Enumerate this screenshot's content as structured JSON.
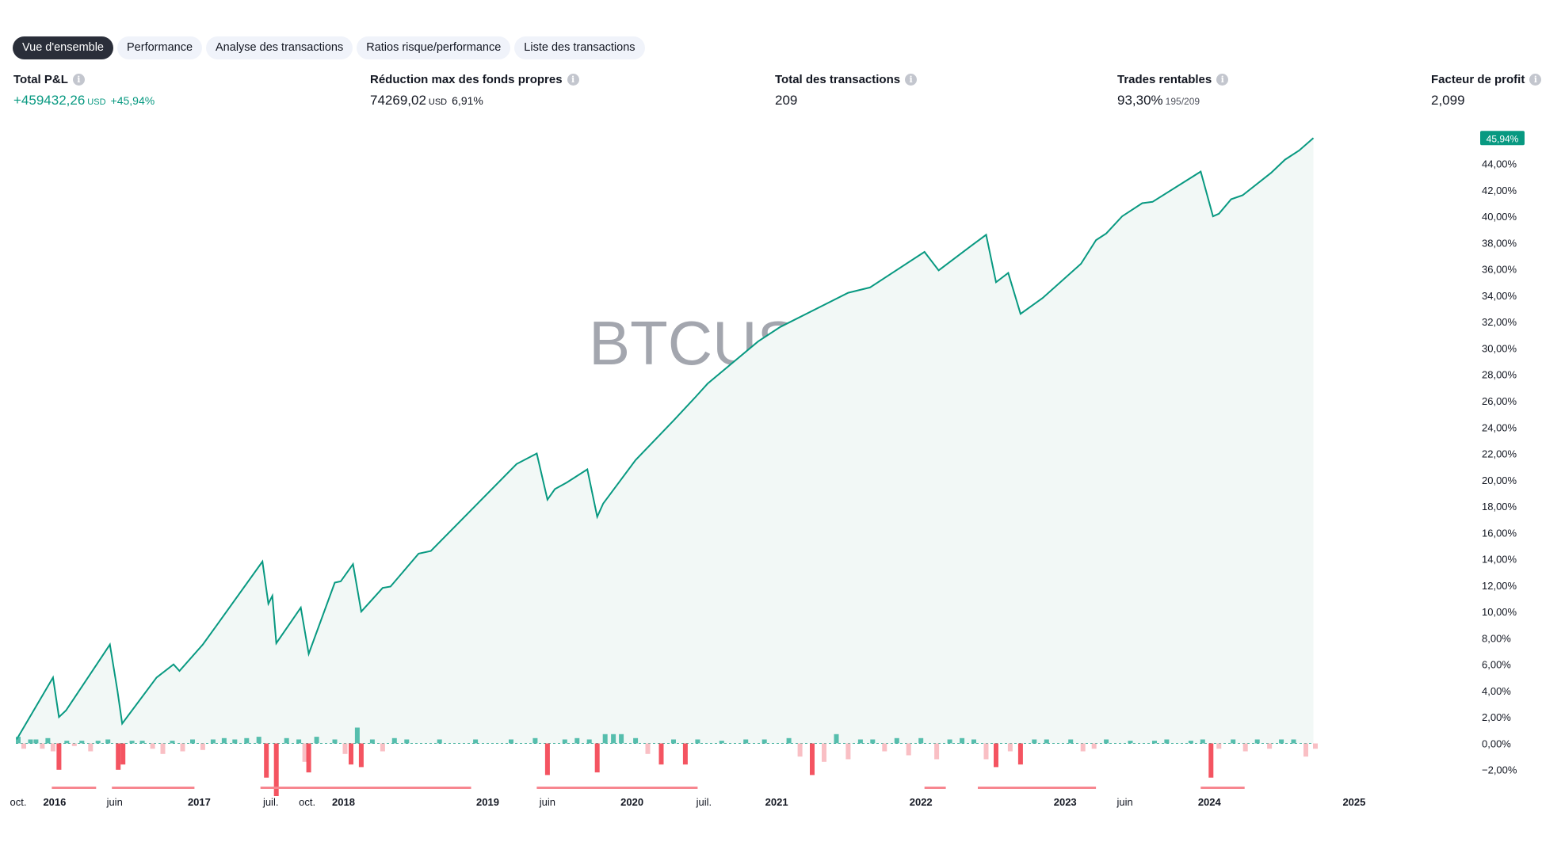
{
  "tabs": [
    {
      "label": "Vue d'ensemble",
      "active": true
    },
    {
      "label": "Performance",
      "active": false
    },
    {
      "label": "Analyse des transactions",
      "active": false
    },
    {
      "label": "Ratios risque/performance",
      "active": false
    },
    {
      "label": "Liste des transactions",
      "active": false
    }
  ],
  "metrics": {
    "total_pnl": {
      "label": "Total P&L",
      "value": "+459432,26",
      "unit": "USD",
      "pct": "+45,94%"
    },
    "max_drawdown": {
      "label": "Réduction max des fonds propres",
      "value": "74269,02",
      "unit": "USD",
      "pct": "6,91%"
    },
    "total_trades": {
      "label": "Total des transactions",
      "value": "209"
    },
    "profitable": {
      "label": "Trades rentables",
      "value": "93,30%",
      "sub": "195/209"
    },
    "profit_factor": {
      "label": "Facteur de profit",
      "value": "2,099"
    }
  },
  "info_icon": "info-icon",
  "colors": {
    "equity_line": "#089981",
    "equity_fill": "#f2f8f6",
    "positive_bar": "#22ab94",
    "negative_bar": "#f23645",
    "negative_bar_light": "#f7a9b0",
    "drawdown_marker": "#f7868f",
    "watermark": "#a3a6ae"
  },
  "chart_data": {
    "type": "area",
    "watermark": "BTCUSD, 1D",
    "y_tick_labels": [
      "−2,00%",
      "0,00%",
      "2,00%",
      "4,00%",
      "6,00%",
      "8,00%",
      "10,00%",
      "12,00%",
      "14,00%",
      "16,00%",
      "18,00%",
      "20,00%",
      "22,00%",
      "24,00%",
      "26,00%",
      "28,00%",
      "30,00%",
      "32,00%",
      "34,00%",
      "36,00%",
      "38,00%",
      "40,00%",
      "42,00%",
      "44,00%"
    ],
    "ylim": [
      -4,
      46.5
    ],
    "last_value_label": "45,94%",
    "x_range": [
      "2015-09-25",
      "2025-10-15"
    ],
    "x_ticks": [
      {
        "date": "2015-10-01",
        "label": "oct.",
        "bold": false
      },
      {
        "date": "2016-01-01",
        "label": "2016",
        "bold": true
      },
      {
        "date": "2016-06-01",
        "label": "juin",
        "bold": false
      },
      {
        "date": "2017-01-01",
        "label": "2017",
        "bold": true
      },
      {
        "date": "2017-07-01",
        "label": "juil.",
        "bold": false
      },
      {
        "date": "2017-10-01",
        "label": "oct.",
        "bold": false
      },
      {
        "date": "2018-01-01",
        "label": "2018",
        "bold": true
      },
      {
        "date": "2019-01-01",
        "label": "2019",
        "bold": true
      },
      {
        "date": "2019-06-01",
        "label": "juin",
        "bold": false
      },
      {
        "date": "2020-01-01",
        "label": "2020",
        "bold": true
      },
      {
        "date": "2020-07-01",
        "label": "juil.",
        "bold": false
      },
      {
        "date": "2021-01-01",
        "label": "2021",
        "bold": true
      },
      {
        "date": "2022-01-01",
        "label": "2022",
        "bold": true
      },
      {
        "date": "2023-01-01",
        "label": "2023",
        "bold": true
      },
      {
        "date": "2023-06-01",
        "label": "juin",
        "bold": false
      },
      {
        "date": "2024-01-01",
        "label": "2024",
        "bold": true
      },
      {
        "date": "2025-01-01",
        "label": "2025",
        "bold": true
      }
    ],
    "series": [
      {
        "values": [
          [
            "2015-09-27",
            0.3
          ],
          [
            "2015-12-28",
            5.0
          ],
          [
            "2016-01-12",
            2.0
          ],
          [
            "2016-01-30",
            2.5
          ],
          [
            "2016-05-20",
            7.5
          ],
          [
            "2016-06-08",
            4.0
          ],
          [
            "2016-06-20",
            1.5
          ],
          [
            "2016-09-15",
            5.0
          ],
          [
            "2016-10-28",
            6.0
          ],
          [
            "2016-11-12",
            5.5
          ],
          [
            "2017-01-10",
            7.5
          ],
          [
            "2017-02-15",
            9.0
          ],
          [
            "2017-06-10",
            13.8
          ],
          [
            "2017-06-25",
            10.6
          ],
          [
            "2017-07-05",
            11.2
          ],
          [
            "2017-07-15",
            7.6
          ],
          [
            "2017-09-15",
            10.3
          ],
          [
            "2017-10-05",
            6.8
          ],
          [
            "2017-12-10",
            12.2
          ],
          [
            "2017-12-25",
            12.3
          ],
          [
            "2018-01-25",
            13.6
          ],
          [
            "2018-02-15",
            10.0
          ],
          [
            "2018-04-10",
            11.8
          ],
          [
            "2018-04-30",
            11.9
          ],
          [
            "2018-07-10",
            14.4
          ],
          [
            "2018-08-10",
            14.6
          ],
          [
            "2019-03-15",
            21.2
          ],
          [
            "2019-05-05",
            22.0
          ],
          [
            "2019-06-01",
            18.5
          ],
          [
            "2019-06-20",
            19.3
          ],
          [
            "2019-07-20",
            19.8
          ],
          [
            "2019-09-10",
            20.8
          ],
          [
            "2019-10-05",
            17.2
          ],
          [
            "2019-10-20",
            18.2
          ],
          [
            "2020-01-10",
            21.5
          ],
          [
            "2020-04-15",
            24.5
          ],
          [
            "2020-06-10",
            26.3
          ],
          [
            "2020-07-10",
            27.3
          ],
          [
            "2020-11-15",
            30.5
          ],
          [
            "2021-01-10",
            31.6
          ],
          [
            "2021-07-01",
            34.2
          ],
          [
            "2021-08-25",
            34.6
          ],
          [
            "2022-01-10",
            37.3
          ],
          [
            "2022-02-15",
            35.9
          ],
          [
            "2022-05-10",
            37.8
          ],
          [
            "2022-06-15",
            38.6
          ],
          [
            "2022-07-10",
            35.0
          ],
          [
            "2022-08-10",
            35.7
          ],
          [
            "2022-09-10",
            32.6
          ],
          [
            "2022-11-05",
            33.8
          ],
          [
            "2023-02-10",
            36.4
          ],
          [
            "2023-03-20",
            38.2
          ],
          [
            "2023-04-15",
            38.7
          ],
          [
            "2023-05-25",
            40.0
          ],
          [
            "2023-07-15",
            41.0
          ],
          [
            "2023-08-10",
            41.1
          ],
          [
            "2023-12-10",
            43.4
          ],
          [
            "2024-01-10",
            40.0
          ],
          [
            "2024-01-25",
            40.2
          ],
          [
            "2024-02-25",
            41.3
          ],
          [
            "2024-03-25",
            41.6
          ],
          [
            "2024-06-05",
            43.3
          ],
          [
            "2024-07-10",
            44.3
          ],
          [
            "2024-08-15",
            45.0
          ],
          [
            "2024-09-20",
            45.94
          ]
        ]
      }
    ],
    "trade_bars": [
      [
        "2015-10-01",
        0.5
      ],
      [
        "2015-10-15",
        -0.4
      ],
      [
        "2015-11-01",
        0.3
      ],
      [
        "2015-11-15",
        0.3
      ],
      [
        "2015-12-01",
        -0.4
      ],
      [
        "2015-12-15",
        0.4
      ],
      [
        "2015-12-28",
        -0.6
      ],
      [
        "2016-01-12",
        -2.0
      ],
      [
        "2016-02-01",
        0.2
      ],
      [
        "2016-02-20",
        -0.2
      ],
      [
        "2016-03-10",
        0.2
      ],
      [
        "2016-04-01",
        -0.6
      ],
      [
        "2016-04-20",
        0.2
      ],
      [
        "2016-05-15",
        0.3
      ],
      [
        "2016-06-10",
        -2.0
      ],
      [
        "2016-06-22",
        -1.6
      ],
      [
        "2016-07-15",
        0.2
      ],
      [
        "2016-08-10",
        0.2
      ],
      [
        "2016-09-05",
        -0.4
      ],
      [
        "2016-10-01",
        -0.8
      ],
      [
        "2016-10-25",
        0.2
      ],
      [
        "2016-11-20",
        -0.6
      ],
      [
        "2016-12-15",
        0.3
      ],
      [
        "2017-01-10",
        -0.5
      ],
      [
        "2017-02-05",
        0.3
      ],
      [
        "2017-03-05",
        0.4
      ],
      [
        "2017-04-01",
        0.3
      ],
      [
        "2017-05-01",
        0.4
      ],
      [
        "2017-06-01",
        0.5
      ],
      [
        "2017-06-20",
        -2.6
      ],
      [
        "2017-07-15",
        -4.0
      ],
      [
        "2017-08-10",
        0.4
      ],
      [
        "2017-09-10",
        0.3
      ],
      [
        "2017-09-25",
        -1.4
      ],
      [
        "2017-10-05",
        -2.2
      ],
      [
        "2017-10-25",
        0.5
      ],
      [
        "2017-12-10",
        0.3
      ],
      [
        "2018-01-05",
        -0.8
      ],
      [
        "2018-01-20",
        -1.6
      ],
      [
        "2018-02-05",
        1.2
      ],
      [
        "2018-02-15",
        -1.8
      ],
      [
        "2018-03-15",
        0.3
      ],
      [
        "2018-04-10",
        -0.6
      ],
      [
        "2018-05-10",
        0.4
      ],
      [
        "2018-06-10",
        0.3
      ],
      [
        "2018-09-01",
        0.3
      ],
      [
        "2018-12-01",
        0.3
      ],
      [
        "2019-03-01",
        0.3
      ],
      [
        "2019-05-01",
        0.4
      ],
      [
        "2019-06-01",
        -2.4
      ],
      [
        "2019-07-15",
        0.3
      ],
      [
        "2019-08-15",
        0.4
      ],
      [
        "2019-09-15",
        0.3
      ],
      [
        "2019-10-05",
        -2.2
      ],
      [
        "2019-10-25",
        0.7
      ],
      [
        "2019-11-15",
        0.7
      ],
      [
        "2019-12-05",
        0.7
      ],
      [
        "2020-01-10",
        0.4
      ],
      [
        "2020-02-10",
        -0.8
      ],
      [
        "2020-03-15",
        -1.6
      ],
      [
        "2020-04-15",
        0.3
      ],
      [
        "2020-05-15",
        -1.6
      ],
      [
        "2020-06-15",
        0.3
      ],
      [
        "2020-08-15",
        0.2
      ],
      [
        "2020-10-15",
        0.3
      ],
      [
        "2020-12-01",
        0.3
      ],
      [
        "2021-02-01",
        0.4
      ],
      [
        "2021-03-01",
        -1.0
      ],
      [
        "2021-04-01",
        -2.4
      ],
      [
        "2021-05-01",
        -1.4
      ],
      [
        "2021-06-01",
        0.7
      ],
      [
        "2021-07-01",
        -1.2
      ],
      [
        "2021-08-01",
        0.3
      ],
      [
        "2021-09-01",
        0.3
      ],
      [
        "2021-10-01",
        -0.6
      ],
      [
        "2021-11-01",
        0.4
      ],
      [
        "2021-12-01",
        -0.9
      ],
      [
        "2022-01-01",
        0.4
      ],
      [
        "2022-02-10",
        -1.2
      ],
      [
        "2022-03-15",
        0.3
      ],
      [
        "2022-04-15",
        0.4
      ],
      [
        "2022-05-15",
        0.3
      ],
      [
        "2022-06-15",
        -1.2
      ],
      [
        "2022-07-10",
        -1.8
      ],
      [
        "2022-08-15",
        -0.6
      ],
      [
        "2022-09-10",
        -1.6
      ],
      [
        "2022-10-15",
        0.3
      ],
      [
        "2022-11-15",
        0.3
      ],
      [
        "2023-01-15",
        0.3
      ],
      [
        "2023-02-15",
        -0.6
      ],
      [
        "2023-03-15",
        -0.4
      ],
      [
        "2023-04-15",
        0.3
      ],
      [
        "2023-06-15",
        0.2
      ],
      [
        "2023-08-15",
        0.2
      ],
      [
        "2023-09-15",
        0.3
      ],
      [
        "2023-11-15",
        0.2
      ],
      [
        "2023-12-15",
        0.3
      ],
      [
        "2024-01-05",
        -2.6
      ],
      [
        "2024-01-25",
        -0.4
      ],
      [
        "2024-03-01",
        0.3
      ],
      [
        "2024-04-01",
        -0.6
      ],
      [
        "2024-05-01",
        0.3
      ],
      [
        "2024-06-01",
        -0.4
      ],
      [
        "2024-07-01",
        0.3
      ],
      [
        "2024-08-01",
        0.3
      ],
      [
        "2024-09-01",
        -1.0
      ],
      [
        "2024-09-25",
        -0.4
      ]
    ],
    "drawdown_periods": [
      [
        "2015-12-25",
        "2016-04-15"
      ],
      [
        "2016-05-25",
        "2016-12-20"
      ],
      [
        "2017-06-05",
        "2018-11-20"
      ],
      [
        "2019-05-05",
        "2020-06-15"
      ],
      [
        "2022-01-10",
        "2022-03-05"
      ],
      [
        "2022-05-25",
        "2023-03-20"
      ],
      [
        "2023-12-10",
        "2024-03-30"
      ]
    ]
  }
}
